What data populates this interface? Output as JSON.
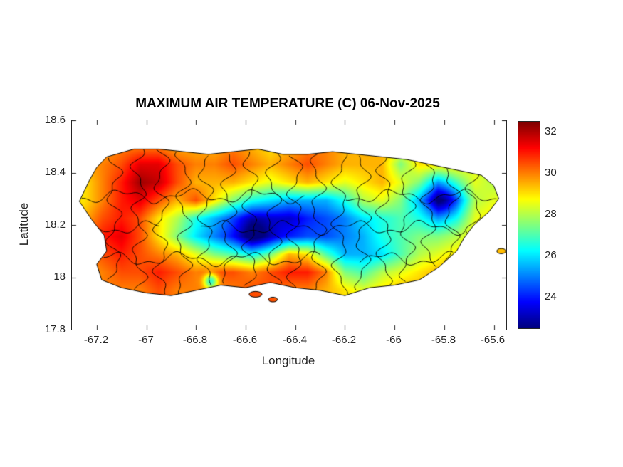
{
  "figure": {
    "title": "MAXIMUM AIR TEMPERATURE (C) 06-Nov-2025",
    "background": "#ffffff",
    "axis_color": "#262626",
    "title_color": "#000000"
  },
  "axes": {
    "xlabel": "Longitude",
    "ylabel": "Latitude",
    "x_tick_labels": [
      "-67.2",
      "-67",
      "-66.8",
      "-66.6",
      "-66.4",
      "-66.2",
      "-66",
      "-65.8",
      "-65.6"
    ],
    "y_tick_labels": [
      "18.6",
      "18.4",
      "18.2",
      "18",
      "17.8"
    ]
  },
  "colorbar": {
    "tick_labels": [
      "32",
      "30",
      "28",
      "26",
      "24"
    ]
  },
  "chart_data": {
    "type": "heatmap",
    "title": "MAXIMUM AIR TEMPERATURE (C) 06-Nov-2025",
    "xlabel": "Longitude",
    "ylabel": "Latitude",
    "units": "C",
    "region": "Puerto Rico with municipality boundaries",
    "xlim": [
      -67.3,
      -65.55
    ],
    "ylim": [
      17.8,
      18.6
    ],
    "clim": [
      22.5,
      32.5
    ],
    "colormap": "jet",
    "x_tick_values": [
      -67.2,
      -67,
      -66.8,
      -66.6,
      -66.4,
      -66.2,
      -66,
      -65.8,
      -65.6
    ],
    "y_tick_values": [
      17.8,
      18,
      18.2,
      18.4,
      18.6
    ],
    "colorbar_tick_values": [
      24,
      26,
      28,
      30,
      32
    ],
    "grid": {
      "orientation": "row 0 = northernmost latitude",
      "lon_start": -67.25,
      "lon_step": 0.075,
      "ncols": 23,
      "lat_start": 18.5,
      "lat_step": -0.06875,
      "nrows": 9,
      "values_c": [
        [
          29.5,
          29.5,
          30,
          30,
          30,
          29.5,
          29.5,
          29.5,
          30,
          29.5,
          29,
          29.5,
          30,
          30,
          29.5,
          29.5,
          29.5,
          29,
          29,
          29,
          29,
          28.5,
          28.5
        ],
        [
          29.5,
          30,
          30.5,
          31.5,
          31.5,
          30.5,
          30,
          30,
          30.5,
          30,
          29.5,
          30,
          30.5,
          30,
          29.5,
          29.5,
          29.5,
          27.5,
          29,
          29,
          29,
          28.5,
          28
        ],
        [
          29,
          30,
          31,
          32.2,
          31.8,
          30.5,
          29.5,
          29.5,
          29.5,
          29,
          28.5,
          29,
          29.5,
          29,
          28.5,
          29,
          29.5,
          28.5,
          27.5,
          25.5,
          27,
          28.5,
          28
        ],
        [
          29,
          30,
          31,
          31.5,
          30.5,
          29.5,
          30.5,
          29,
          27.5,
          26.5,
          26,
          25.5,
          25.5,
          25.5,
          26.5,
          28,
          28.5,
          27.5,
          25.5,
          23.2,
          25,
          28,
          28.5
        ],
        [
          29.5,
          30.5,
          31,
          30.5,
          29,
          28,
          26.5,
          25.5,
          24.5,
          23.5,
          23.5,
          23.2,
          24,
          24.5,
          25,
          26,
          26.5,
          27,
          26.5,
          25.5,
          26.5,
          28.5,
          29
        ],
        [
          30,
          31,
          31.5,
          30.5,
          29,
          27.5,
          26,
          25,
          24,
          22.8,
          23.5,
          24,
          24.5,
          24.5,
          25,
          25.5,
          26.5,
          27,
          27.5,
          27.5,
          28,
          29,
          29
        ],
        [
          30,
          30.5,
          31,
          30.5,
          30,
          29.5,
          28.5,
          27.5,
          27,
          26.5,
          27.5,
          29.5,
          29,
          27,
          25.5,
          25.5,
          26,
          27,
          28,
          28.5,
          29,
          29.5,
          29.5
        ],
        [
          29.5,
          30,
          30.5,
          30.5,
          31,
          30.5,
          30,
          30.5,
          30.5,
          30,
          30.5,
          31,
          31,
          30,
          27.5,
          27,
          28,
          28.5,
          29,
          29.5,
          30,
          30,
          29.5
        ],
        [
          29.5,
          30,
          30,
          30,
          30.5,
          30,
          30,
          30,
          30,
          30.5,
          30.5,
          30,
          30,
          29.5,
          29,
          28.5,
          29,
          29.5,
          29.5,
          29.5,
          29.5,
          29,
          29
        ]
      ]
    },
    "island_polygon": [
      [
        -67.16,
        18.46
      ],
      [
        -67.05,
        18.49
      ],
      [
        -66.95,
        18.49
      ],
      [
        -66.85,
        18.48
      ],
      [
        -66.75,
        18.47
      ],
      [
        -66.65,
        18.48
      ],
      [
        -66.55,
        18.49
      ],
      [
        -66.45,
        18.47
      ],
      [
        -66.35,
        18.47
      ],
      [
        -66.25,
        18.48
      ],
      [
        -66.15,
        18.47
      ],
      [
        -66.05,
        18.46
      ],
      [
        -65.95,
        18.45
      ],
      [
        -65.85,
        18.43
      ],
      [
        -65.75,
        18.41
      ],
      [
        -65.65,
        18.39
      ],
      [
        -65.6,
        18.35
      ],
      [
        -65.58,
        18.3
      ],
      [
        -65.62,
        18.25
      ],
      [
        -65.68,
        18.2
      ],
      [
        -65.72,
        18.15
      ],
      [
        -65.75,
        18.1
      ],
      [
        -65.82,
        18.04
      ],
      [
        -65.9,
        17.99
      ],
      [
        -66.0,
        17.97
      ],
      [
        -66.1,
        17.96
      ],
      [
        -66.2,
        17.93
      ],
      [
        -66.3,
        17.95
      ],
      [
        -66.4,
        17.96
      ],
      [
        -66.5,
        17.98
      ],
      [
        -66.6,
        17.96
      ],
      [
        -66.7,
        17.97
      ],
      [
        -66.8,
        17.95
      ],
      [
        -66.9,
        17.93
      ],
      [
        -67.0,
        17.94
      ],
      [
        -67.1,
        17.96
      ],
      [
        -67.18,
        17.99
      ],
      [
        -67.2,
        18.05
      ],
      [
        -67.16,
        18.1
      ],
      [
        -67.17,
        18.16
      ],
      [
        -67.22,
        18.22
      ],
      [
        -67.27,
        18.29
      ],
      [
        -67.23,
        18.37
      ],
      [
        -67.2,
        18.42
      ]
    ],
    "islets": [
      {
        "lon": -66.56,
        "lat": 17.935,
        "rx": 0.026,
        "ry": 0.011
      },
      {
        "lon": -66.49,
        "lat": 17.915,
        "rx": 0.018,
        "ry": 0.009
      },
      {
        "lon": -65.57,
        "lat": 18.1,
        "rx": 0.018,
        "ry": 0.01
      }
    ],
    "anomalies": [
      {
        "lon": -66.74,
        "lat": 17.985,
        "delta": -3.5,
        "sigma": 0.02
      },
      {
        "lon": -65.8,
        "lat": 18.295,
        "delta": -1.2,
        "sigma": 0.04
      },
      {
        "lon": -66.56,
        "lat": 18.17,
        "delta": -1.0,
        "sigma": 0.05
      }
    ],
    "boundaries": {
      "vertical_lons": [
        -67.13,
        -67.03,
        -66.94,
        -66.85,
        -66.76,
        -66.67,
        -66.58,
        -66.49,
        -66.4,
        -66.31,
        -66.22,
        -66.13,
        -66.04,
        -65.95,
        -65.86,
        -65.77,
        -65.68
      ],
      "horizontal_lats": [
        18.07,
        18.19,
        18.31
      ]
    }
  }
}
